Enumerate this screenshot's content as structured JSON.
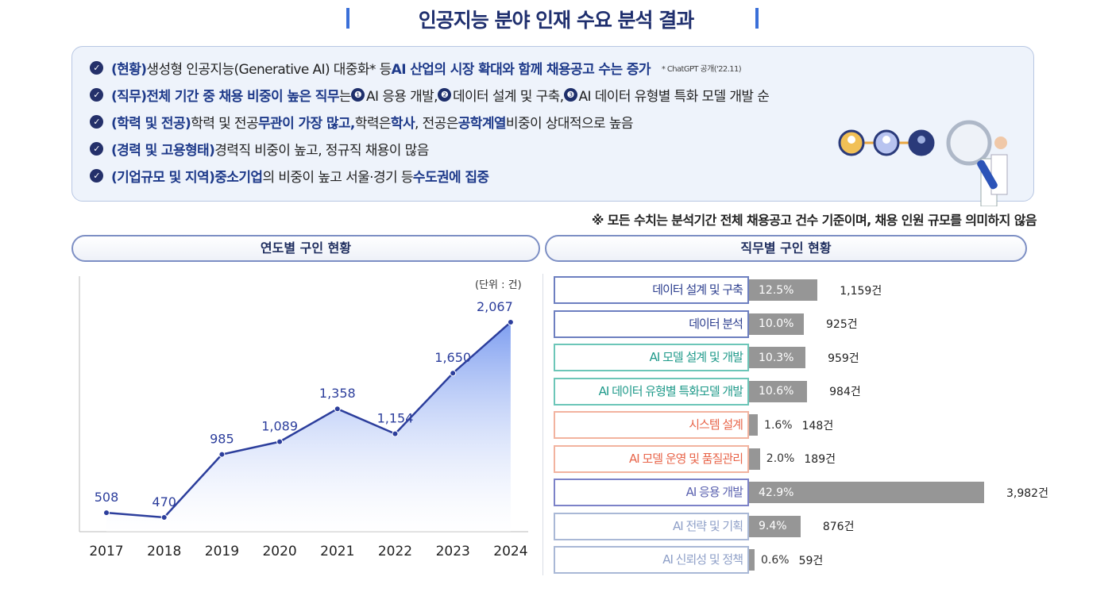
{
  "title": "인공지능 분야 인재 수요 분석 결과",
  "summary": [
    {
      "tag": "(현황)",
      "parts": [
        {
          "t": " 생성형 인공지능(Generative AI) 대중화* 등 ",
          "h": false
        },
        {
          "t": "AI 산업의 시장 확대와 함께 채용공고 수는 증가",
          "h": true
        }
      ],
      "footnote": "* ChatGPT 공개('22.11)"
    },
    {
      "tag": "(직무)",
      "parts": [
        {
          "t": " 전체 기간 중 채용 비중이 높은 직무",
          "h": true
        },
        {
          "t": "는 ",
          "h": false
        },
        {
          "t": "❶",
          "n": true
        },
        {
          "t": "AI 응용 개발, ",
          "h": false
        },
        {
          "t": "❷",
          "n": true
        },
        {
          "t": "데이터 설계 및 구축, ",
          "h": false
        },
        {
          "t": "❸",
          "n": true
        },
        {
          "t": "AI 데이터 유형별 특화 모델 개발 순",
          "h": false
        }
      ]
    },
    {
      "tag": "(학력 및 전공)",
      "parts": [
        {
          "t": " 학력 및 전공 ",
          "h": false
        },
        {
          "t": "무관이 가장 많고,",
          "h": true
        },
        {
          "t": " 학력은 ",
          "h": false
        },
        {
          "t": "학사",
          "h": true
        },
        {
          "t": ", 전공은 ",
          "h": false
        },
        {
          "t": "공학계열",
          "h": true
        },
        {
          "t": " 비중이 상대적으로 높음",
          "h": false
        }
      ]
    },
    {
      "tag": "(경력 및 고용형태)",
      "parts": [
        {
          "t": " 경력직 비중이 높고, 정규직 채용이 많음",
          "h": false
        }
      ]
    },
    {
      "tag": "(기업규모 및 지역)",
      "parts": [
        {
          "t": " 중소기업",
          "h": true
        },
        {
          "t": "의 비중이 높고 서울·경기 등 ",
          "h": false
        },
        {
          "t": "수도권에 집중",
          "h": true
        }
      ]
    }
  ],
  "note": "※ 모든 수치는 분석기간 전체 채용공고 건수 기준이며, 채용 인원 규모를 의미하지 않음",
  "left_title": "연도별 구인 현황",
  "right_title": "직무별 구인 현황",
  "chart_data": [
    {
      "type": "area",
      "unit": "(단위 : 건)",
      "categories": [
        "2017",
        "2018",
        "2019",
        "2020",
        "2021",
        "2022",
        "2023",
        "2024"
      ],
      "values": [
        508,
        470,
        985,
        1089,
        1358,
        1154,
        1650,
        2067
      ],
      "labels": [
        "508",
        "470",
        "985",
        "1,089",
        "1,358",
        "1,154",
        "1,650",
        "2,067"
      ],
      "color": "#2c3e9c",
      "grid": false
    },
    {
      "type": "bar",
      "orientation": "horizontal",
      "items": [
        {
          "label": "데이터 설계 및 구축",
          "pct": 12.5,
          "pct_label": "12.5%",
          "count": "1,159건",
          "color": "#2d3f8f",
          "border": "#6d7fc0"
        },
        {
          "label": "데이터 분석",
          "pct": 10.0,
          "pct_label": "10.0%",
          "count": "925건",
          "color": "#2d3f8f",
          "border": "#6d7fc0"
        },
        {
          "label": "AI 모델 설계 및 개발",
          "pct": 10.3,
          "pct_label": "10.3%",
          "count": "959건",
          "color": "#1f9a8a",
          "border": "#6cc6b8"
        },
        {
          "label": "AI 데이터 유형별 특화모델 개발",
          "pct": 10.6,
          "pct_label": "10.6%",
          "count": "984건",
          "color": "#1f9a8a",
          "border": "#6cc6b8"
        },
        {
          "label": "시스템 설계",
          "pct": 1.6,
          "pct_label": "1.6%",
          "count": "148건",
          "color": "#e8654a",
          "border": "#f2b39f"
        },
        {
          "label": "AI 모델 운영 및 품질관리",
          "pct": 2.0,
          "pct_label": "2.0%",
          "count": "189건",
          "color": "#e8654a",
          "border": "#f2b39f"
        },
        {
          "label": "AI 응용 개발",
          "pct": 42.9,
          "pct_label": "42.9%",
          "count": "3,982건",
          "color": "#5b62b0",
          "border": "#7c82c8"
        },
        {
          "label": "AI 전략 및 기획",
          "pct": 9.4,
          "pct_label": "9.4%",
          "count": "876건",
          "color": "#8fa0c8",
          "border": "#a9b8d6"
        },
        {
          "label": "AI 신뢰성 및 정책",
          "pct": 0.6,
          "pct_label": "0.6%",
          "count": "59건",
          "color": "#8fa0c8",
          "border": "#a9b8d6"
        }
      ]
    }
  ]
}
